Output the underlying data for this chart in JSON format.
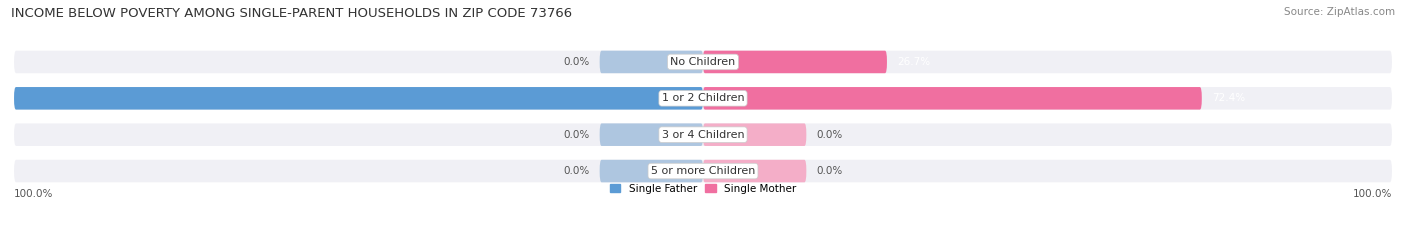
{
  "title": "INCOME BELOW POVERTY AMONG SINGLE-PARENT HOUSEHOLDS IN ZIP CODE 73766",
  "source": "Source: ZipAtlas.com",
  "categories": [
    "No Children",
    "1 or 2 Children",
    "3 or 4 Children",
    "5 or more Children"
  ],
  "single_father": [
    0.0,
    100.0,
    0.0,
    0.0
  ],
  "single_mother": [
    26.7,
    72.4,
    0.0,
    0.0
  ],
  "father_color_dark": "#5b9bd5",
  "father_color_light": "#aec6e0",
  "mother_color_dark": "#f06fa0",
  "mother_color_light": "#f4aec8",
  "bar_bg_color": "#e8e8ed",
  "row_bg_color": "#f0f0f5",
  "title_fontsize": 9.5,
  "source_fontsize": 7.5,
  "label_fontsize": 7.5,
  "cat_fontsize": 8,
  "background_color": "#ffffff",
  "bar_height": 0.62,
  "legend_labels": [
    "Single Father",
    "Single Mother"
  ],
  "xlim_left": -100,
  "xlim_right": 100,
  "default_stub": 15
}
